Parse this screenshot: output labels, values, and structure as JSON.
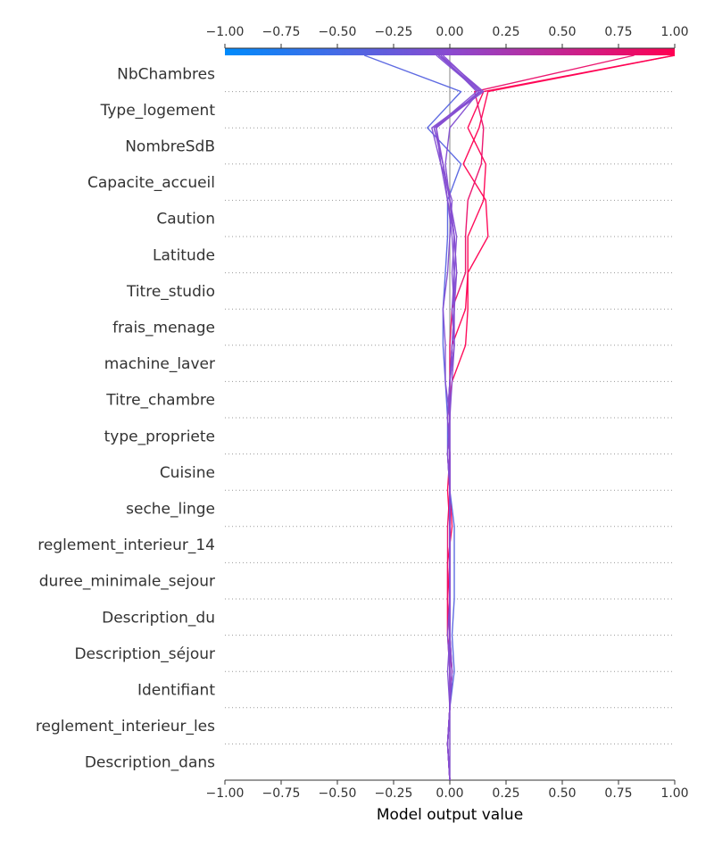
{
  "chart_data": {
    "type": "line",
    "subtype": "shap-decision-plot",
    "xlabel": "Model output value",
    "xlim": [
      -1.0,
      1.0
    ],
    "xticks": [
      -1.0,
      -0.75,
      -0.5,
      -0.25,
      0.0,
      0.25,
      0.5,
      0.75,
      1.0
    ],
    "xtick_labels": [
      "−1.00",
      "−0.75",
      "−0.50",
      "−0.25",
      "0.00",
      "0.25",
      "0.50",
      "0.75",
      "1.00"
    ],
    "base_value": 0.0,
    "colorbar": {
      "range": [
        -1.0,
        1.0
      ],
      "low_color": "#008bfb",
      "high_color": "#ff0052",
      "position": "top"
    },
    "grid": "dotted-horizontal",
    "features": [
      "NbChambres",
      "Type_logement",
      "NombreSdB",
      "Capacite_accueil",
      "Caution",
      "Latitude",
      "Titre_studio",
      "frais_menage",
      "machine_laver",
      "Titre_chambre",
      "type_propriete",
      "Cuisine",
      "seche_linge",
      "reglement_interieur_14",
      "duree_minimale_sejour",
      "Description_du",
      "Description_séjour",
      "Identifiant",
      "reglement_interieur_les",
      "Description_dans"
    ],
    "series": [
      {
        "output": 1.0,
        "values": [
          -0.01,
          0.0,
          0.01,
          0.0,
          -0.01,
          0.0,
          0.0,
          -0.01,
          0.0,
          -0.01,
          0.01,
          0.07,
          0.08,
          0.08,
          0.17,
          0.16,
          0.06,
          0.13,
          0.17,
          1.0
        ]
      },
      {
        "output": 1.0,
        "values": [
          -0.01,
          0.0,
          0.01,
          -0.01,
          -0.01,
          -0.01,
          0.01,
          0.0,
          -0.01,
          0.0,
          0.0,
          0.01,
          0.07,
          0.08,
          0.08,
          0.15,
          0.16,
          0.08,
          0.15,
          1.0
        ]
      },
      {
        "output": 0.82,
        "values": [
          -0.01,
          0.0,
          0.0,
          -0.01,
          -0.01,
          -0.01,
          -0.01,
          0.0,
          0.0,
          -0.01,
          0.0,
          0.0,
          0.01,
          0.07,
          0.07,
          0.08,
          0.14,
          0.15,
          0.11,
          0.82
        ]
      },
      {
        "output": -0.38,
        "values": [
          -0.01,
          0.0,
          0.02,
          0.01,
          0.02,
          0.02,
          0.02,
          0.0,
          -0.01,
          -0.01,
          -0.02,
          -0.03,
          -0.03,
          -0.02,
          -0.01,
          -0.01,
          0.05,
          -0.1,
          0.05,
          -0.38
        ]
      },
      {
        "output": -0.05,
        "values": [
          0.0,
          0.0,
          0.01,
          0.0,
          0.0,
          0.0,
          0.0,
          0.0,
          -0.01,
          0.0,
          -0.02,
          -0.02,
          -0.03,
          -0.01,
          0.0,
          0.01,
          -0.04,
          -0.08,
          0.14,
          -0.05
        ]
      },
      {
        "output": -0.04,
        "values": [
          -0.01,
          0.0,
          0.0,
          0.0,
          0.0,
          0.0,
          0.0,
          0.0,
          0.0,
          -0.01,
          0.0,
          0.02,
          0.01,
          0.03,
          0.02,
          0.0,
          -0.03,
          -0.07,
          0.12,
          -0.04
        ]
      },
      {
        "output": -0.05,
        "values": [
          -0.01,
          0.0,
          0.0,
          -0.01,
          0.0,
          0.0,
          0.0,
          0.0,
          -0.01,
          0.0,
          0.01,
          0.02,
          0.01,
          0.02,
          0.03,
          0.0,
          -0.02,
          0.0,
          0.13,
          -0.05
        ]
      },
      {
        "output": -0.06,
        "values": [
          -0.01,
          0.0,
          -0.01,
          0.0,
          0.0,
          0.0,
          0.0,
          0.0,
          0.0,
          -0.01,
          0.0,
          0.02,
          0.02,
          0.02,
          0.01,
          -0.01,
          -0.04,
          -0.06,
          0.13,
          -0.06
        ]
      },
      {
        "output": -0.04,
        "values": [
          -0.01,
          0.0,
          0.0,
          0.0,
          0.0,
          0.0,
          0.0,
          0.0,
          0.0,
          0.0,
          0.0,
          0.01,
          0.02,
          0.01,
          0.02,
          -0.01,
          -0.03,
          -0.07,
          0.15,
          -0.04
        ]
      },
      {
        "output": -0.03,
        "values": [
          -0.01,
          0.0,
          0.01,
          0.0,
          0.0,
          0.0,
          0.0,
          0.0,
          0.0,
          0.0,
          0.0,
          0.01,
          0.02,
          0.03,
          0.02,
          0.0,
          -0.03,
          -0.06,
          0.14,
          -0.03
        ]
      }
    ]
  }
}
